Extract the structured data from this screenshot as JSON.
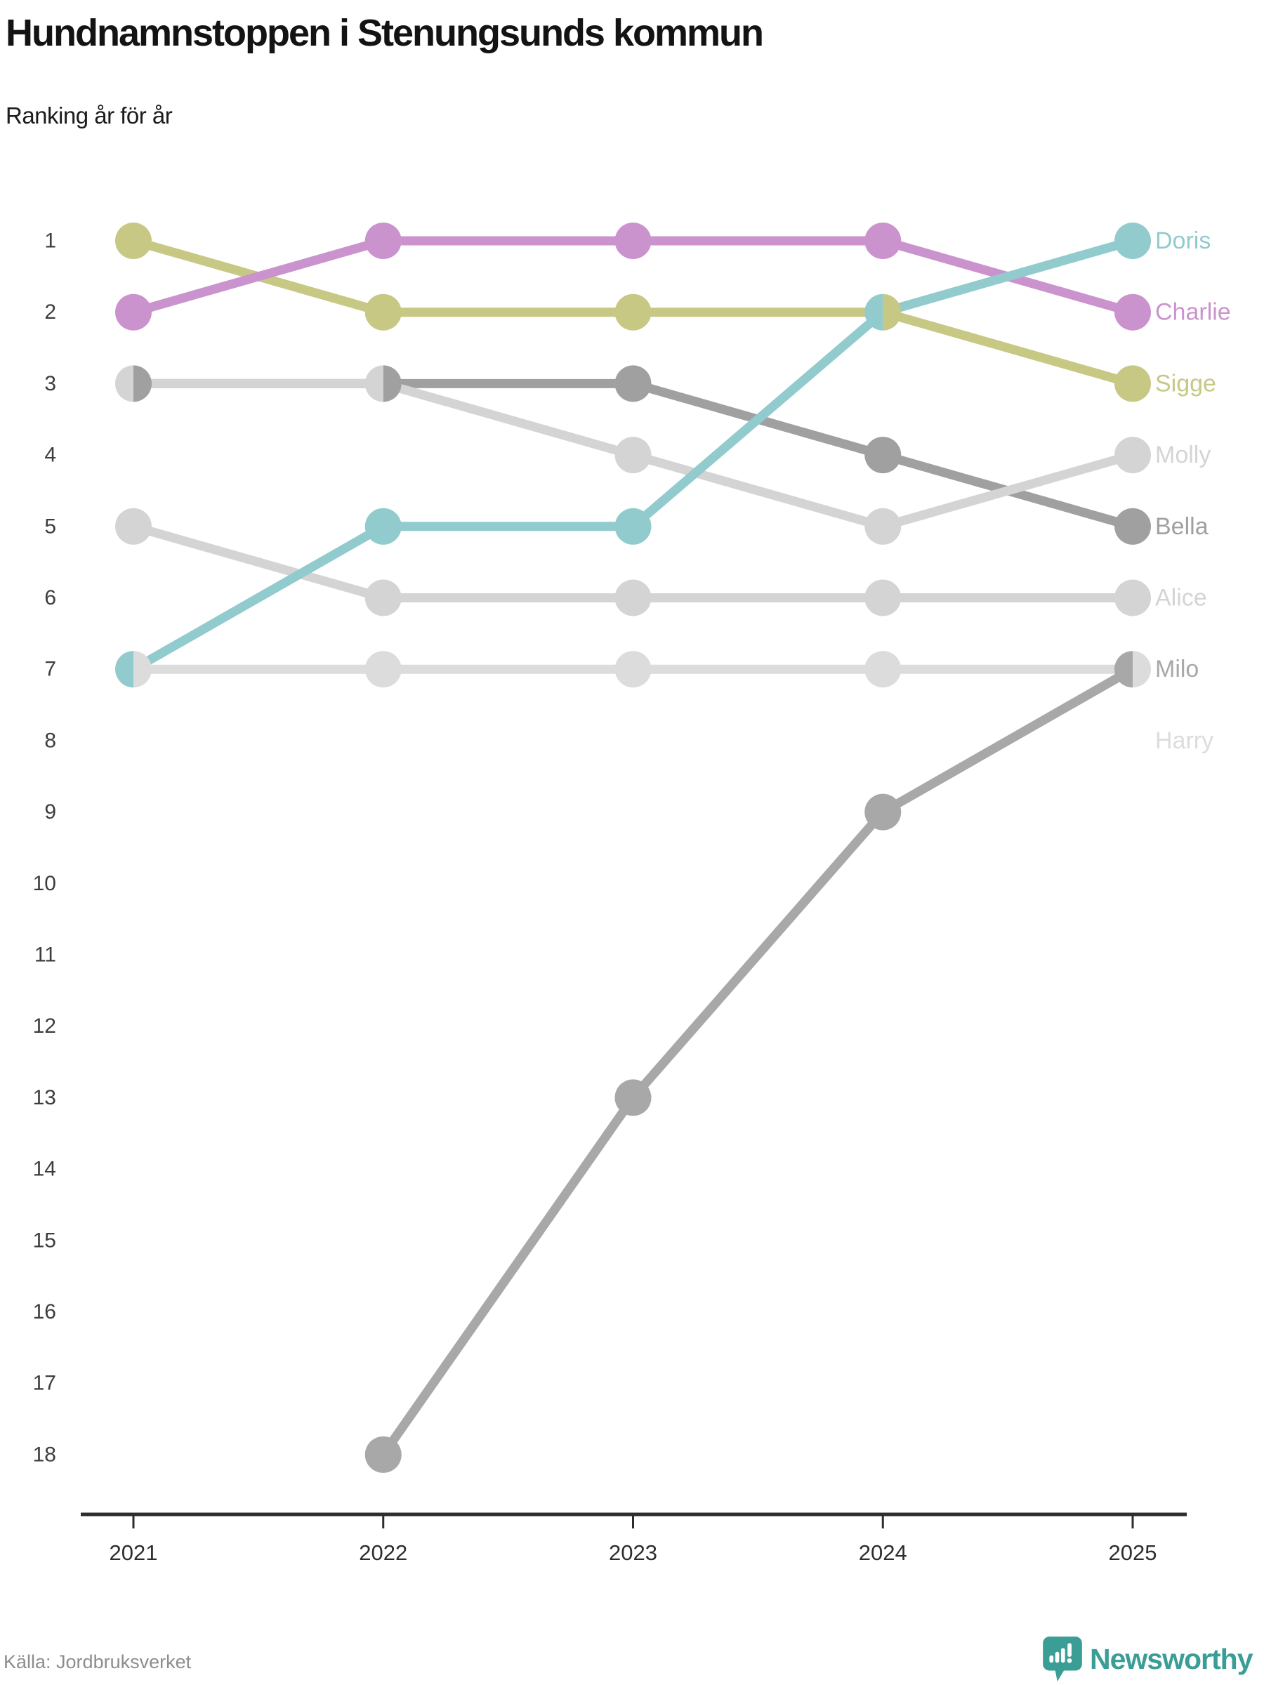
{
  "chart_data": {
    "type": "line",
    "variant": "bump-ranking",
    "title": "Hundnamnstoppen i Stenungsunds kommun",
    "subtitle": "Ranking år för år",
    "source": "Källa: Jordbruksverket",
    "x": [
      "2021",
      "2022",
      "2023",
      "2024",
      "2025"
    ],
    "y_ticks": [
      "1",
      "2",
      "3",
      "4",
      "5",
      "6",
      "7",
      "8",
      "9",
      "10",
      "11",
      "12",
      "13",
      "14",
      "15",
      "16",
      "17",
      "18"
    ],
    "ylim": [
      1,
      18
    ],
    "y_inverted": true,
    "grid": false,
    "legend_position": "right-edge-labels",
    "axis_color": "#2d2d2d",
    "tick_label_color": "#3d3d3d",
    "series": [
      {
        "name": "Harry",
        "color": "#dcdcdc",
        "values": [
          7,
          7,
          7,
          7,
          7
        ],
        "label_rank": 8
      },
      {
        "name": "Alice",
        "color": "#d4d4d4",
        "values": [
          5,
          6,
          6,
          6,
          6
        ],
        "label_rank": 6
      },
      {
        "name": "Bella",
        "color": "#a0a0a0",
        "values": [
          3,
          3,
          3,
          4,
          5
        ],
        "label_rank": 5
      },
      {
        "name": "Molly",
        "color": "#d4d4d4",
        "values": [
          3,
          3,
          4,
          5,
          4
        ],
        "label_rank": 4
      },
      {
        "name": "Milo",
        "color": "#a8a8a8",
        "values": [
          null,
          18,
          13,
          9,
          7
        ],
        "label_rank": 7
      },
      {
        "name": "Sigge",
        "color": "#c6c884",
        "values": [
          1,
          2,
          2,
          2,
          3
        ],
        "label_rank": 3
      },
      {
        "name": "Charlie",
        "color": "#cb93cd",
        "values": [
          2,
          1,
          1,
          1,
          2
        ],
        "label_rank": 2
      },
      {
        "name": "Doris",
        "color": "#92cbcd",
        "values": [
          7,
          5,
          5,
          2,
          1
        ],
        "label_rank": 1
      }
    ]
  },
  "footer": {
    "brand": "Newsworthy"
  }
}
